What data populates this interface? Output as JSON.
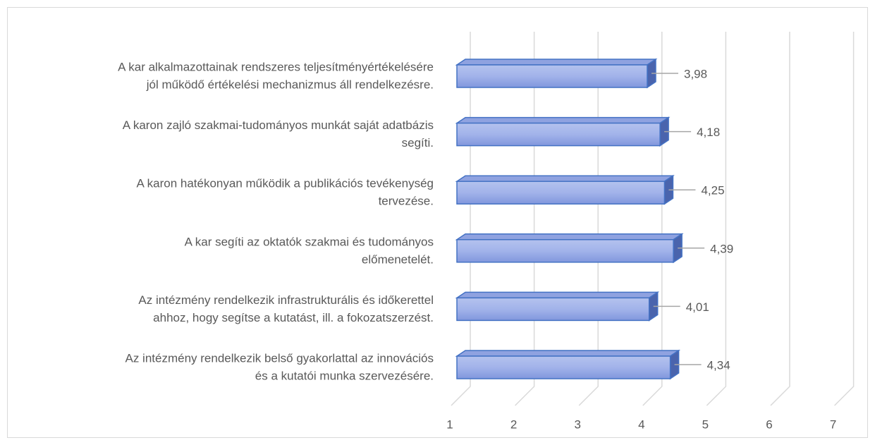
{
  "chart_data": {
    "type": "bar3d_horizontal",
    "categories": [
      [
        "A kar alkalmazottainak rendszeres teljesítményértékelésére",
        "jól működő értékelési mechanizmus áll rendelkezésre."
      ],
      [
        "A karon zajló szakmai-tudományos munkát saját adatbázis",
        "segíti."
      ],
      [
        "A karon hatékonyan működik a publikációs tevékenység",
        "tervezése."
      ],
      [
        "A kar segíti az oktatók szakmai és tudományos",
        "előmenetelét."
      ],
      [
        "Az intézmény rendelkezik infrastrukturális és időkerettel",
        "ahhoz, hogy segítse a kutatást, ill. a fokozatszerzést."
      ],
      [
        "Az intézmény rendelkezik belső gyakorlattal az innovációs",
        "és a kutatói munka szervezésére."
      ]
    ],
    "values": [
      3.98,
      4.18,
      4.25,
      4.39,
      4.01,
      4.34
    ],
    "value_labels": [
      "3,98",
      "4,18",
      "4,25",
      "4,39",
      "4,01",
      "4,34"
    ],
    "xlim": [
      1,
      7
    ],
    "xticks": [
      1,
      2,
      3,
      4,
      5,
      6,
      7
    ],
    "grid": true,
    "color": "#8fa2e0"
  }
}
